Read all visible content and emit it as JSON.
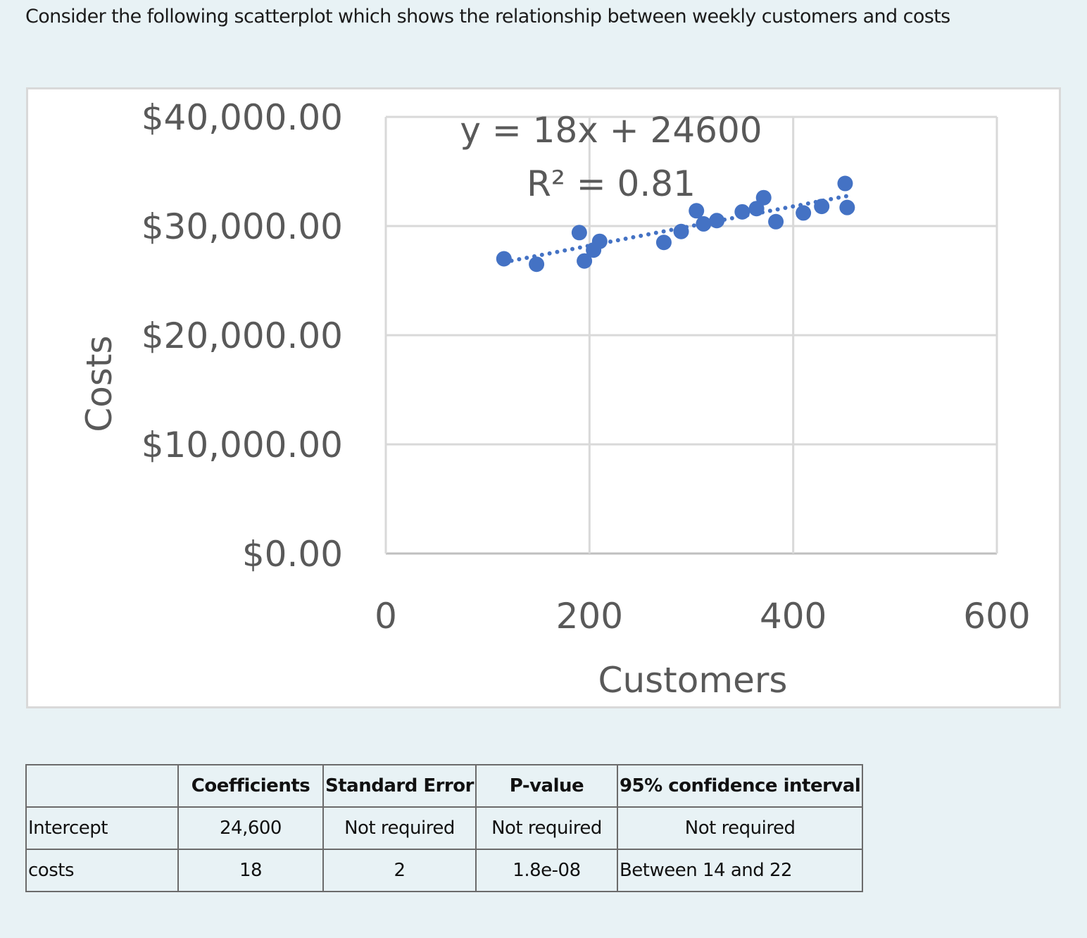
{
  "question": {
    "text": "Consider the following scatterplot which shows the relationship between weekly customers and costs"
  },
  "chart_data": {
    "type": "scatter",
    "title": "",
    "xlabel": "Customers",
    "ylabel": "Costs",
    "xlim": [
      0,
      600
    ],
    "ylim": [
      0,
      40000
    ],
    "x_ticks": [
      "0",
      "200",
      "400",
      "600"
    ],
    "y_ticks": [
      "$0.00",
      "$10,000.00",
      "$20,000.00",
      "$30,000.00",
      "$40,000.00"
    ],
    "grid": true,
    "legend": "none",
    "marker_color": "#4472c4",
    "trendline": {
      "type": "linear",
      "style": "dotted",
      "equation": "y = 18x + 24600",
      "r_squared": "R² = 0.81",
      "slope": 18,
      "intercept": 24600
    },
    "series": [
      {
        "name": "Costs",
        "points": [
          {
            "x": 116,
            "y": 27000
          },
          {
            "x": 148,
            "y": 26500
          },
          {
            "x": 190,
            "y": 29400
          },
          {
            "x": 195,
            "y": 26800
          },
          {
            "x": 204,
            "y": 27800
          },
          {
            "x": 210,
            "y": 28600
          },
          {
            "x": 273,
            "y": 28500
          },
          {
            "x": 290,
            "y": 29500
          },
          {
            "x": 305,
            "y": 31400
          },
          {
            "x": 312,
            "y": 30200
          },
          {
            "x": 325,
            "y": 30500
          },
          {
            "x": 350,
            "y": 31300
          },
          {
            "x": 364,
            "y": 31600
          },
          {
            "x": 371,
            "y": 32600
          },
          {
            "x": 383,
            "y": 30400
          },
          {
            "x": 410,
            "y": 31200
          },
          {
            "x": 428,
            "y": 31800
          },
          {
            "x": 451,
            "y": 33900
          },
          {
            "x": 453,
            "y": 31700
          }
        ]
      }
    ]
  },
  "table": {
    "headers": [
      "",
      "Coefficients",
      "Standard Error",
      "P-value",
      "95% confidence interval"
    ],
    "rows": [
      [
        "Intercept",
        "24,600",
        "Not required",
        "Not required",
        "Not required"
      ],
      [
        "costs",
        "18",
        "2",
        "1.8e-08",
        "Between 14 and 22"
      ]
    ]
  }
}
